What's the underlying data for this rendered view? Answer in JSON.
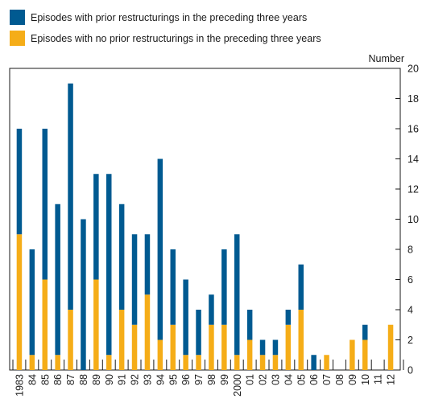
{
  "chart_data": {
    "type": "bar",
    "stacked": true,
    "unit_label": "Number",
    "title": "",
    "xlabel": "",
    "ylabel": "",
    "ylim": [
      0,
      20
    ],
    "yticks": [
      0,
      2,
      4,
      6,
      8,
      10,
      12,
      14,
      16,
      18,
      20
    ],
    "grid": false,
    "legend_placement": "top-left",
    "categories": [
      "1983",
      "84",
      "85",
      "86",
      "87",
      "88",
      "89",
      "90",
      "91",
      "92",
      "93",
      "94",
      "95",
      "96",
      "97",
      "98",
      "99",
      "2000",
      "01",
      "02",
      "03",
      "04",
      "05",
      "06",
      "07",
      "08",
      "09",
      "10",
      "11",
      "12"
    ],
    "series": [
      {
        "name": "Episodes with no prior restructurings in the preceding three years",
        "color": "#f5ad18",
        "values": [
          9,
          1,
          6,
          1,
          4,
          0,
          6,
          1,
          4,
          3,
          5,
          2,
          3,
          1,
          1,
          3,
          3,
          1,
          2,
          1,
          1,
          3,
          4,
          0,
          1,
          0,
          2,
          2,
          0,
          3
        ]
      },
      {
        "name": "Episodes with prior restructurings in the preceding three years",
        "color": "#005a91",
        "values": [
          7,
          7,
          10,
          10,
          15,
          10,
          7,
          12,
          7,
          6,
          4,
          12,
          5,
          5,
          3,
          2,
          5,
          8,
          2,
          1,
          1,
          1,
          3,
          1,
          0,
          0,
          0,
          1,
          0,
          0
        ]
      }
    ]
  }
}
